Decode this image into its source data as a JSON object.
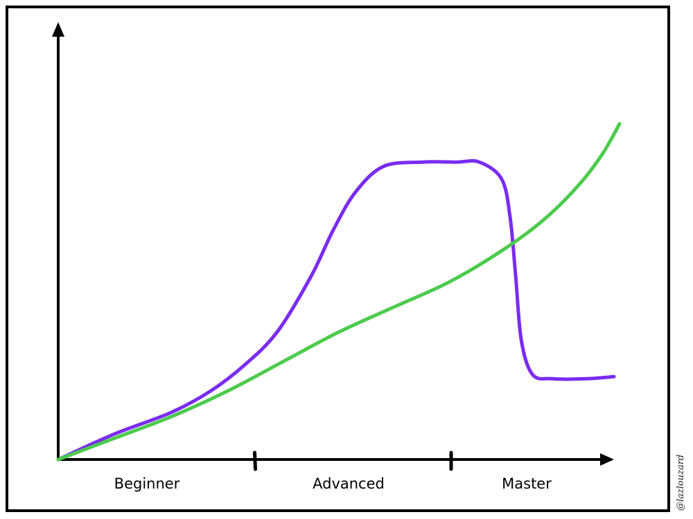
{
  "chart_data": {
    "type": "line",
    "title": "",
    "xlabel": "",
    "ylabel": "",
    "xlim": [
      0,
      10
    ],
    "ylim": [
      0,
      10
    ],
    "grid": false,
    "legend": "none",
    "stages": [
      "Beginner",
      "Advanced",
      "Master"
    ],
    "stage_boundaries": [
      3.5,
      7
    ],
    "series": [
      {
        "color": "#7a2cf0",
        "points": [
          [
            0,
            0
          ],
          [
            1,
            0.6
          ],
          [
            2,
            1.1
          ],
          [
            2.7,
            1.6
          ],
          [
            3.3,
            2.2
          ],
          [
            3.9,
            3.0
          ],
          [
            4.5,
            4.3
          ],
          [
            4.9,
            5.4
          ],
          [
            5.3,
            6.3
          ],
          [
            5.8,
            6.9
          ],
          [
            6.5,
            7.0
          ],
          [
            7.1,
            7.0
          ],
          [
            7.5,
            7.0
          ],
          [
            7.9,
            6.6
          ],
          [
            8.05,
            5.7
          ],
          [
            8.15,
            4.3
          ],
          [
            8.25,
            2.8
          ],
          [
            8.45,
            2.0
          ],
          [
            8.8,
            1.9
          ],
          [
            9.4,
            1.9
          ],
          [
            9.9,
            1.95
          ]
        ]
      },
      {
        "color": "#4ccb4c",
        "points": [
          [
            0,
            0
          ],
          [
            1,
            0.5
          ],
          [
            2,
            1.0
          ],
          [
            3,
            1.6
          ],
          [
            4,
            2.3
          ],
          [
            5,
            3.0
          ],
          [
            6,
            3.6
          ],
          [
            7,
            4.2
          ],
          [
            8,
            5.0
          ],
          [
            8.7,
            5.7
          ],
          [
            9.3,
            6.5
          ],
          [
            9.7,
            7.2
          ],
          [
            10,
            7.9
          ]
        ]
      }
    ],
    "signature": "@lazlouzard"
  }
}
